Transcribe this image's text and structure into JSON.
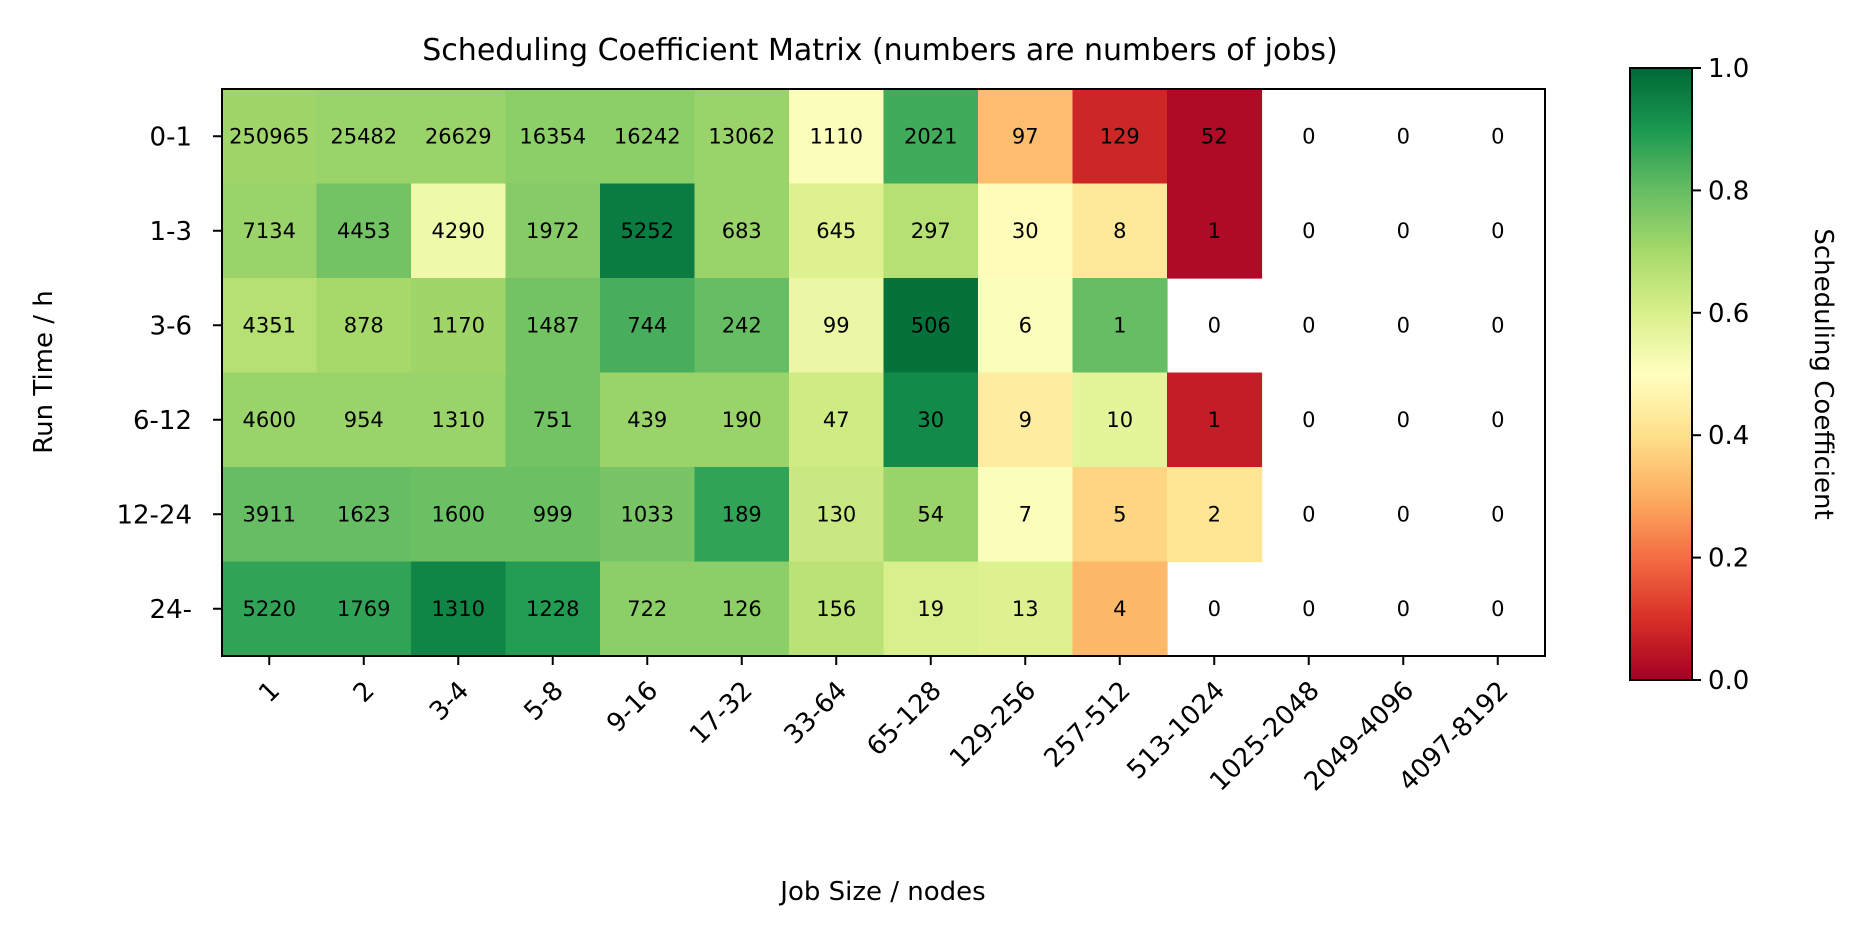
{
  "chart_data": {
    "type": "heatmap",
    "title": "Scheduling Coefficient Matrix (numbers are numbers of jobs)",
    "xlabel": "Job Size / nodes",
    "ylabel": "Run Time / h",
    "x_categories": [
      "1",
      "2",
      "3-4",
      "5-8",
      "9-16",
      "17-32",
      "33-64",
      "65-128",
      "129-256",
      "257-512",
      "513-1024",
      "1025-2048",
      "2049-4096",
      "4097-8192"
    ],
    "y_categories": [
      "0-1",
      "1-3",
      "3-6",
      "6-12",
      "12-24",
      "24-"
    ],
    "counts": [
      [
        "250965",
        "25482",
        "26629",
        "16354",
        "16242",
        "13062",
        "1110",
        "2021",
        "97",
        "129",
        "52",
        "0",
        "0",
        "0"
      ],
      [
        "7134",
        "4453",
        "4290",
        "1972",
        "5252",
        "683",
        "645",
        "297",
        "30",
        "8",
        "1",
        "0",
        "0",
        "0"
      ],
      [
        "4351",
        "878",
        "1170",
        "1487",
        "744",
        "242",
        "99",
        "506",
        "6",
        "1",
        "0",
        "0",
        "0",
        "0"
      ],
      [
        "4600",
        "954",
        "1310",
        "751",
        "439",
        "190",
        "47",
        "30",
        "9",
        "10",
        "1",
        "0",
        "0",
        "0"
      ],
      [
        "3911",
        "1623",
        "1600",
        "999",
        "1033",
        "189",
        "130",
        "54",
        "7",
        "5",
        "2",
        "0",
        "0",
        "0"
      ],
      [
        "5220",
        "1769",
        "1310",
        "1228",
        "722",
        "126",
        "156",
        "19",
        "13",
        "4",
        "0",
        "0",
        "0",
        "0"
      ]
    ],
    "values": [
      [
        0.71,
        0.72,
        0.72,
        0.74,
        0.74,
        0.72,
        0.51,
        0.85,
        0.33,
        0.08,
        0.02,
        null,
        null,
        null
      ],
      [
        0.72,
        0.78,
        0.54,
        0.75,
        0.96,
        0.72,
        0.59,
        0.67,
        0.49,
        0.43,
        0.02,
        null,
        null,
        null
      ],
      [
        0.67,
        0.7,
        0.71,
        0.78,
        0.84,
        0.8,
        0.55,
        0.98,
        0.51,
        0.8,
        null,
        null,
        null,
        null
      ],
      [
        0.72,
        0.72,
        0.72,
        0.78,
        0.72,
        0.72,
        0.62,
        0.93,
        0.44,
        0.57,
        0.06,
        null,
        null,
        null
      ],
      [
        0.8,
        0.8,
        0.79,
        0.79,
        0.77,
        0.87,
        0.63,
        0.72,
        0.51,
        0.38,
        0.42,
        null,
        null,
        null
      ],
      [
        0.87,
        0.87,
        0.94,
        0.89,
        0.74,
        0.74,
        0.66,
        0.6,
        0.59,
        0.32,
        null,
        null,
        null,
        null
      ]
    ],
    "colorbar": {
      "label": "Scheduling Coefficient",
      "range": [
        0,
        1
      ],
      "ticks": [
        "0.0",
        "0.2",
        "0.4",
        "0.6",
        "0.8",
        "1.0"
      ],
      "colormap": "RdYlGn"
    },
    "colors": {
      "axis": "#000000",
      "background": "#ffffff"
    }
  }
}
